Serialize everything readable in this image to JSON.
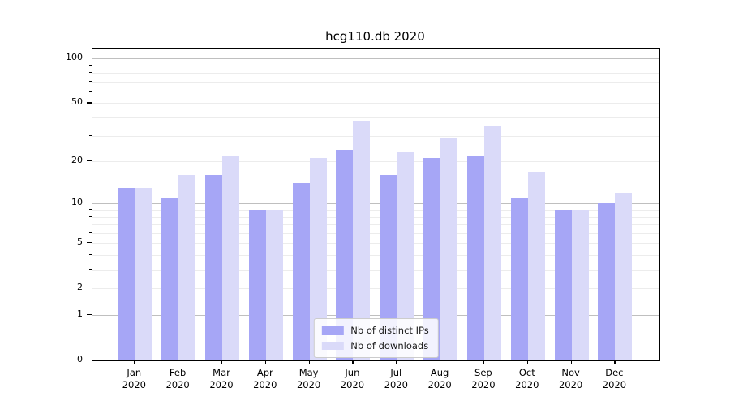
{
  "title": "hcg110.db 2020",
  "colors": {
    "distinct_ips": "#a6a6f6",
    "downloads": "#dadaf9",
    "grid_decade": "#bfbfbf",
    "grid_minor": "#ececec",
    "spine": "#000000"
  },
  "legend": {
    "items": [
      {
        "label": "Nb of distinct IPs",
        "color_key": "distinct_ips"
      },
      {
        "label": "Nb of downloads",
        "color_key": "downloads"
      }
    ]
  },
  "chart_data": {
    "type": "bar",
    "title": "hcg110.db 2020",
    "categories": [
      "Jan 2020",
      "Feb 2020",
      "Mar 2020",
      "Apr 2020",
      "May 2020",
      "Jun 2020",
      "Jul 2020",
      "Aug 2020",
      "Sep 2020",
      "Oct 2020",
      "Nov 2020",
      "Dec 2020"
    ],
    "series": [
      {
        "name": "Nb of distinct IPs",
        "color_key": "distinct_ips",
        "values": [
          13,
          11,
          16,
          9,
          14,
          24,
          16,
          21,
          22,
          11,
          9,
          10
        ]
      },
      {
        "name": "Nb of downloads",
        "color_key": "downloads",
        "values": [
          13,
          16,
          22,
          9,
          21,
          38,
          23,
          29,
          35,
          17,
          9,
          12
        ]
      }
    ],
    "xlabel": "",
    "ylabel": "",
    "yscale": "log1p",
    "yticks_labeled": [
      0,
      1,
      2,
      5,
      10,
      20,
      50,
      100
    ],
    "yticks_decade": [
      1,
      10,
      100
    ],
    "yticks_minor": [
      3,
      4,
      6,
      7,
      8,
      9,
      30,
      40,
      60,
      70,
      80,
      90
    ],
    "ylim": [
      0,
      117
    ],
    "grid": true,
    "legend_position": "lower center"
  }
}
